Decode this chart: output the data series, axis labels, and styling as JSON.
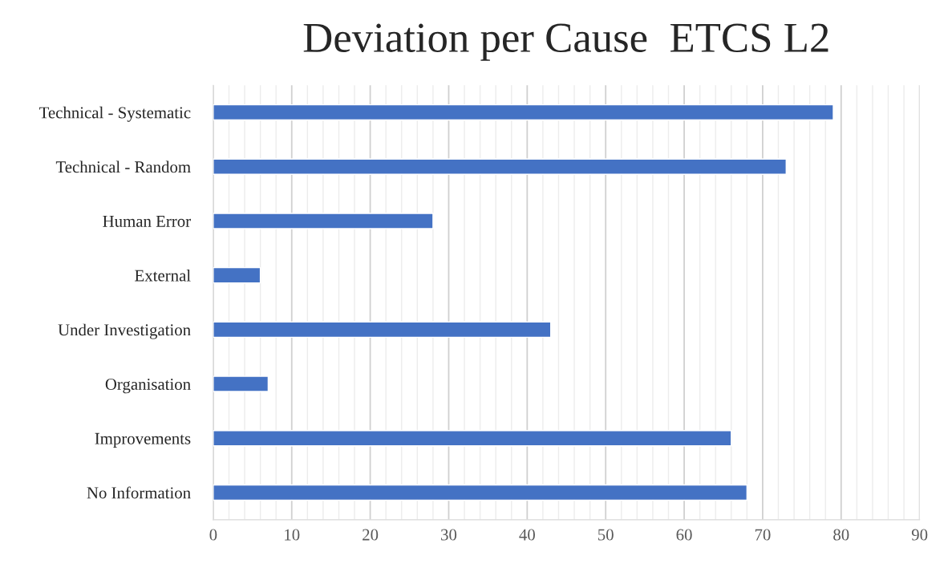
{
  "chart_data": {
    "type": "bar",
    "orientation": "horizontal",
    "title": "Deviation per Cause  ETCS L2",
    "categories": [
      "Technical - Systematic",
      "Technical - Random",
      "Human Error",
      "External",
      "Under Investigation",
      "Organisation",
      "Improvements",
      "No Information"
    ],
    "values": [
      79,
      73,
      28,
      6,
      43,
      7,
      66,
      68
    ],
    "color": "#4472c4",
    "xlim": [
      0,
      90
    ],
    "xticks": [
      0,
      {
        "value": 2,
        "label": null
      },
      {
        "value": 4,
        "label": null
      },
      {
        "value": 6,
        "label": null
      },
      {
        "value": 8,
        "label": null
      },
      10,
      {
        "value": 12,
        "label": null
      },
      {
        "value": 14,
        "label": null
      },
      {
        "value": 16,
        "label": null
      },
      {
        "value": 18,
        "label": null
      },
      20,
      {
        "value": 22,
        "label": null
      },
      {
        "value": 24,
        "label": null
      },
      {
        "value": 26,
        "label": null
      },
      {
        "value": 28,
        "label": null
      },
      30,
      {
        "value": 32,
        "label": null
      },
      {
        "value": 34,
        "label": null
      },
      {
        "value": 36,
        "label": null
      },
      {
        "value": 38,
        "label": null
      },
      40,
      {
        "value": 42,
        "label": null
      },
      {
        "value": 44,
        "label": null
      },
      {
        "value": 46,
        "label": null
      },
      {
        "value": 48,
        "label": null
      },
      50,
      {
        "value": 52,
        "label": null
      },
      {
        "value": 54,
        "label": null
      },
      {
        "value": 56,
        "label": null
      },
      {
        "value": 58,
        "label": null
      },
      60,
      {
        "value": 62,
        "label": null
      },
      {
        "value": 64,
        "label": null
      },
      {
        "value": 66,
        "label": null
      },
      {
        "value": 68,
        "label": null
      },
      70,
      {
        "value": 72,
        "label": null
      },
      {
        "value": 74,
        "label": null
      },
      {
        "value": 76,
        "label": null
      },
      {
        "value": 78,
        "label": null
      },
      80,
      {
        "value": 82,
        "label": null
      },
      {
        "value": 84,
        "label": null
      },
      {
        "value": 86,
        "label": null
      },
      {
        "value": 88,
        "label": null
      },
      90
    ],
    "grid": "x"
  }
}
